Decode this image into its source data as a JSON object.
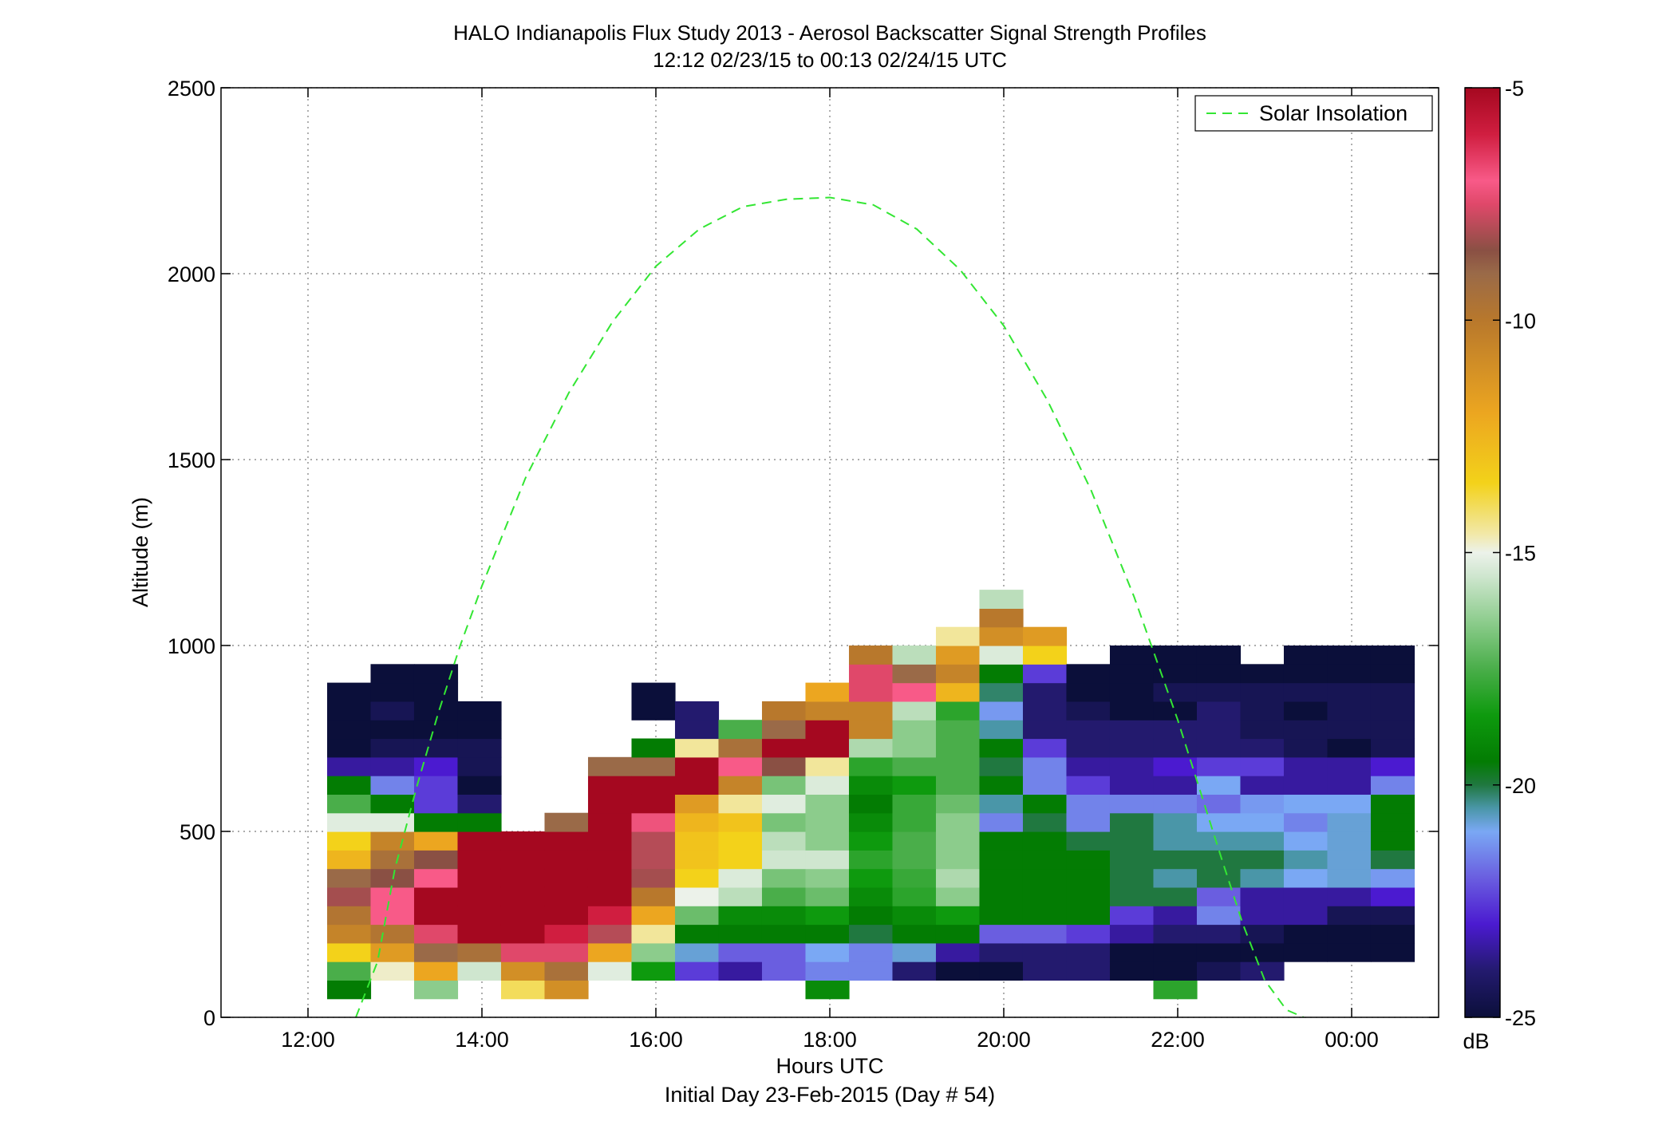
{
  "chart_data": {
    "type": "heatmap",
    "title": "HALO Indianapolis Flux Study 2013 - Aerosol Backscatter Signal Strength Profiles",
    "subtitle": "12:12 02/23/15 to 00:13 02/24/15  UTC",
    "xlabel": "Hours UTC",
    "xlabel2": "Initial Day 23-Feb-2015 (Day # 54)",
    "ylabel": "Altitude (m)",
    "xlim": [
      11.0,
      25.0
    ],
    "ylim": [
      0,
      2500
    ],
    "x_ticks": [
      12,
      14,
      16,
      18,
      20,
      22,
      24
    ],
    "x_tick_labels": [
      "12:00",
      "14:00",
      "16:00",
      "18:00",
      "20:00",
      "22:00",
      "00:00"
    ],
    "y_ticks": [
      0,
      500,
      1000,
      1500,
      2000,
      2500
    ],
    "y_tick_labels": [
      "0",
      "500",
      "1000",
      "1500",
      "2000",
      "2500"
    ],
    "grid": true,
    "colorbar": {
      "range": [
        -25,
        -5
      ],
      "ticks": [
        -25,
        -20,
        -15,
        -10,
        -5
      ],
      "tick_labels": [
        "-25",
        "-20",
        "-15",
        "-10",
        "-5"
      ],
      "unit": "dB"
    },
    "colormap": [
      {
        "v": -25.0,
        "c": "#0b0f3a"
      },
      {
        "v": -24.0,
        "c": "#231a6e"
      },
      {
        "v": -23.0,
        "c": "#4b1ad0"
      },
      {
        "v": -22.0,
        "c": "#6a5ee0"
      },
      {
        "v": -21.0,
        "c": "#7aa8f4"
      },
      {
        "v": -20.5,
        "c": "#4a96a8"
      },
      {
        "v": -20.0,
        "c": "#207840"
      },
      {
        "v": -19.5,
        "c": "#037c03"
      },
      {
        "v": -18.5,
        "c": "#0e9a0e"
      },
      {
        "v": -17.5,
        "c": "#4aae4a"
      },
      {
        "v": -16.5,
        "c": "#8ccc8c"
      },
      {
        "v": -15.5,
        "c": "#cfe6cf"
      },
      {
        "v": -15.0,
        "c": "#ecf2ea"
      },
      {
        "v": -14.6,
        "c": "#f2e8a8"
      },
      {
        "v": -13.5,
        "c": "#f3d21a"
      },
      {
        "v": -12.0,
        "c": "#eca620"
      },
      {
        "v": -10.0,
        "c": "#b8782c"
      },
      {
        "v": -9.0,
        "c": "#9a6a48"
      },
      {
        "v": -8.5,
        "c": "#8a5044"
      },
      {
        "v": -7.5,
        "c": "#e0486a"
      },
      {
        "v": -7.0,
        "c": "#f85a88"
      },
      {
        "v": -6.0,
        "c": "#d01e40"
      },
      {
        "v": -5.0,
        "c": "#a50820"
      }
    ],
    "heatmap": {
      "x_start": 12.22,
      "dx": 0.5,
      "y_start": 50,
      "dy": 50,
      "units": "dB",
      "note_rows": "each row: x = column start hour, v = dB values from y_start upward (null = no data)",
      "columns": [
        {
          "x": 12.22,
          "v": [
            -19.5,
            -17.5,
            -13.5,
            -10.5,
            -9.8,
            -8.2,
            -9.0,
            -12.5,
            -13.5,
            -15.2,
            -17.5,
            -19.5,
            -23.5,
            -25.0,
            -25.0,
            -25.0,
            -25.0
          ]
        },
        {
          "x": 12.72,
          "v": [
            null,
            -14.8,
            -11.5,
            -9.8,
            -7.0,
            -7.0,
            -8.5,
            -9.5,
            -10.5,
            -15.2,
            -19.5,
            -21.5,
            -23.5,
            -24.5,
            -25.0,
            -24.5,
            -25.0,
            -25.0
          ]
        },
        {
          "x": 13.22,
          "v": [
            -16.5,
            -12.0,
            -9.0,
            -7.5,
            -5.0,
            -5.0,
            -7.0,
            -8.5,
            -12.0,
            -19.5,
            -22.5,
            -22.5,
            -23.0,
            -24.5,
            -25.0,
            -25.0,
            -25.0,
            -25.0
          ]
        },
        {
          "x": 13.72,
          "v": [
            null,
            -15.5,
            -9.5,
            -5.0,
            -5.0,
            -5.0,
            -5.0,
            -5.0,
            -5.0,
            -19.5,
            -24.0,
            -25.0,
            -24.5,
            -24.5,
            -25.0,
            -25.0
          ]
        },
        {
          "x": 14.22,
          "v": [
            -14.0,
            -11.0,
            -7.5,
            -5.0,
            -5.0,
            -5.0,
            -5.0,
            -5.0,
            -5.0
          ]
        },
        {
          "x": 14.72,
          "v": [
            -11.0,
            -9.5,
            -7.5,
            -6.0,
            -5.0,
            -5.0,
            -5.0,
            -5.0,
            -5.0,
            -9.0
          ]
        },
        {
          "x": 15.22,
          "v": [
            null,
            -15.2,
            -12.0,
            -8.0,
            -6.0,
            -5.0,
            -5.0,
            -5.0,
            -5.0,
            -5.0,
            -5.0,
            -5.0,
            -9.0
          ]
        },
        {
          "x": 15.72,
          "v": [
            null,
            -18.5,
            -16.5,
            -14.5,
            -12.0,
            -10.0,
            -8.2,
            -8.0,
            -8.0,
            -7.2,
            -5.0,
            -5.0,
            -9.0,
            -19.5,
            null,
            -25.0,
            -25.0
          ]
        },
        {
          "x": 16.22,
          "v": [
            null,
            -22.5,
            -20.8,
            -19.5,
            -17.0,
            -15.0,
            -13.5,
            -13.0,
            -13.0,
            -12.5,
            -11.5,
            -5.0,
            -5.0,
            -14.5,
            -24.0,
            -24.0
          ]
        },
        {
          "x": 16.72,
          "v": [
            null,
            -23.5,
            -22.0,
            -19.5,
            -19.0,
            -15.8,
            -15.3,
            -13.5,
            -13.5,
            -13.0,
            -14.5,
            -10.5,
            -7.0,
            -9.5,
            -17.5
          ]
        },
        {
          "x": 17.22,
          "v": [
            null,
            -22.0,
            -22.0,
            -19.5,
            -19.0,
            -17.5,
            -16.8,
            -15.5,
            -15.8,
            -16.8,
            -15.2,
            -16.8,
            -8.5,
            -5.0,
            -9.0,
            -10.0
          ]
        },
        {
          "x": 17.72,
          "v": [
            -19.0,
            -21.5,
            -21.0,
            -19.5,
            -18.5,
            -17.0,
            -16.5,
            -15.5,
            -16.5,
            -16.5,
            -16.5,
            -15.3,
            -14.5,
            -5.0,
            -5.0,
            -10.5,
            -12.0
          ]
        },
        {
          "x": 18.22,
          "v": [
            null,
            -21.5,
            -21.5,
            -20.0,
            -19.5,
            -19.0,
            -18.5,
            -18.0,
            -18.5,
            -19.0,
            -19.5,
            -19.0,
            -18.0,
            -16.0,
            -10.5,
            -10.5,
            -7.5,
            -7.5,
            -10.0
          ]
        },
        {
          "x": 18.72,
          "v": [
            null,
            -24.0,
            -20.8,
            -19.5,
            -19.0,
            -18.0,
            -17.8,
            -17.5,
            -17.5,
            -17.8,
            -17.8,
            -18.5,
            -17.5,
            -16.5,
            -16.5,
            -15.8,
            -7.0,
            -9.0,
            -15.8
          ]
        },
        {
          "x": 19.22,
          "v": [
            null,
            -25.0,
            -23.5,
            -19.5,
            -18.5,
            -16.5,
            -16.0,
            -16.5,
            -16.5,
            -16.5,
            -17.0,
            -17.5,
            -17.5,
            -17.5,
            -17.5,
            -18.0,
            -12.5,
            -10.5,
            -11.5,
            -14.5
          ]
        },
        {
          "x": 19.72,
          "v": [
            null,
            -25.0,
            -24.0,
            -22.0,
            -19.5,
            -19.5,
            -19.5,
            -19.5,
            -19.5,
            -21.5,
            -20.5,
            -19.5,
            -20.0,
            -19.5,
            -20.5,
            -21.2,
            -20.2,
            -19.5,
            -15.3,
            -11.0,
            -10.0,
            -15.8
          ]
        },
        {
          "x": 20.22,
          "v": [
            null,
            -24.0,
            -24.0,
            -22.0,
            -19.5,
            -19.5,
            -19.5,
            -19.5,
            -19.5,
            -20.0,
            -19.5,
            -21.5,
            -21.5,
            -22.5,
            -24.0,
            -24.0,
            -24.0,
            -22.5,
            -13.5,
            -11.5
          ]
        },
        {
          "x": 20.72,
          "v": [
            null,
            -24.0,
            -24.0,
            -22.5,
            -19.5,
            -19.5,
            -19.5,
            -19.5,
            -20.0,
            -21.5,
            -21.5,
            -22.5,
            -23.5,
            -24.0,
            -24.0,
            -24.5,
            -25.0,
            -25.0
          ]
        },
        {
          "x": 21.22,
          "v": [
            null,
            -25.0,
            -25.0,
            -23.5,
            -22.5,
            -20.0,
            -20.0,
            -20.0,
            -20.0,
            -20.0,
            -21.5,
            -23.5,
            -23.5,
            -24.0,
            -24.0,
            -25.0,
            -25.0,
            -25.0,
            -25.0
          ]
        },
        {
          "x": 21.72,
          "v": [
            -18.0,
            -25.0,
            -25.0,
            -24.0,
            -23.5,
            -20.0,
            -20.5,
            -20.0,
            -20.5,
            -20.5,
            -21.5,
            -23.5,
            -23.0,
            -24.0,
            -24.0,
            -25.0,
            -24.5,
            -25.0,
            -25.0
          ]
        },
        {
          "x": 22.22,
          "v": [
            null,
            -24.5,
            -25.0,
            -24.0,
            -21.5,
            -22.0,
            -20.0,
            -20.0,
            -20.5,
            -21.0,
            -21.8,
            -21.0,
            -22.5,
            -24.0,
            -24.0,
            -24.0,
            -24.5,
            -25.0,
            -25.0
          ]
        },
        {
          "x": 22.72,
          "v": [
            null,
            -24.0,
            -25.0,
            -24.5,
            -23.5,
            -23.5,
            -20.5,
            -20.0,
            -20.5,
            -21.0,
            -21.2,
            -23.5,
            -22.5,
            -24.0,
            -24.5,
            -24.5,
            -24.5,
            -25.0
          ]
        },
        {
          "x": 23.22,
          "v": [
            null,
            null,
            -25.0,
            -25.0,
            -23.5,
            -23.5,
            -21.0,
            -20.5,
            -21.0,
            -21.5,
            -21.0,
            -23.5,
            -23.5,
            -24.5,
            -24.5,
            -25.0,
            -24.5,
            -25.0,
            -25.0
          ]
        },
        {
          "x": 23.72,
          "v": [
            null,
            null,
            -25.0,
            -25.0,
            -24.5,
            -23.5,
            -20.8,
            -20.8,
            -20.8,
            -20.8,
            -21.0,
            -23.5,
            -23.5,
            -25.0,
            -24.5,
            -24.5,
            -24.5,
            -25.0,
            -25.0
          ]
        },
        {
          "x": 24.22,
          "v": [
            null,
            null,
            -25.0,
            -25.0,
            -24.5,
            -23.0,
            -21.2,
            -20.0,
            -19.5,
            -19.5,
            -19.5,
            -21.5,
            -23.0,
            -24.5,
            -24.5,
            -24.5,
            -24.5,
            -25.0,
            -25.0
          ]
        }
      ]
    },
    "series": [
      {
        "name": "Solar Insolation",
        "style": "dashed",
        "color": "#33e633",
        "x": [
          12.55,
          12.8,
          13.0,
          13.25,
          13.5,
          13.75,
          14.0,
          14.5,
          15.0,
          15.5,
          16.0,
          16.5,
          17.0,
          17.5,
          18.0,
          18.5,
          19.0,
          19.5,
          20.0,
          20.5,
          21.0,
          21.5,
          22.0,
          22.5,
          22.75,
          23.0,
          23.25,
          23.45
        ],
        "y": [
          0,
          150,
          400,
          620,
          820,
          1000,
          1160,
          1450,
          1680,
          1870,
          2020,
          2120,
          2180,
          2200,
          2205,
          2185,
          2120,
          2010,
          1860,
          1660,
          1420,
          1130,
          800,
          430,
          250,
          100,
          20,
          0
        ]
      }
    ],
    "legend_position": "top-right"
  }
}
